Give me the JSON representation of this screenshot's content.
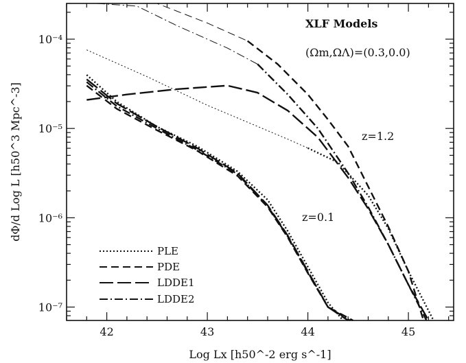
{
  "chart_data": {
    "type": "line",
    "title": "XLF Models",
    "subtitle": "(Ωm,ΩΛ)=(0.3,0.0)",
    "xlabel": "Log Lx [h50^-2 erg s^-1]",
    "ylabel": "dΦ/d Log L [h50^3 Mpc^-3]",
    "xlim": [
      41.6,
      45.45
    ],
    "ylim_log10": [
      -7.15,
      -3.6
    ],
    "yscale": "log",
    "x_ticks": [
      "42",
      "43",
      "44",
      "45"
    ],
    "y_ticks": [
      "10⁻⁴",
      "10⁻⁵",
      "10⁻⁶",
      "10⁻⁷"
    ],
    "annotations": [
      "z=1.2",
      "z=0.1"
    ],
    "legend": [
      "PLE",
      "PDE",
      "LDDE1",
      "LDDE2"
    ],
    "legend_position": "bottom-left",
    "series": [
      {
        "name": "PLE",
        "redshift": "1.2",
        "style": "dotted",
        "width": 1,
        "x": [
          41.8,
          42.4,
          43.0,
          43.4,
          43.8,
          44.0
        ],
        "log_y": [
          -4.12,
          -4.42,
          -4.74,
          -4.93,
          -5.12,
          -5.22
        ]
      },
      {
        "name": "PDE",
        "redshift": "1.2",
        "style": "dashed",
        "width": 1,
        "x": [
          42.1,
          42.5,
          43.0,
          43.4
        ],
        "log_y": [
          -3.45,
          -3.6,
          -3.82,
          -4.02
        ]
      },
      {
        "name": "LDDE2",
        "redshift": "1.2",
        "style": "dashdot",
        "width": 1,
        "x": [
          41.9,
          42.3,
          42.7,
          43.2,
          43.5
        ],
        "log_y": [
          -3.5,
          -3.63,
          -3.85,
          -4.1,
          -4.28
        ]
      },
      {
        "name": "PLE",
        "redshift": "1.2",
        "style": "dotted",
        "width": 2,
        "x": [
          44.0,
          44.3,
          44.6,
          44.8,
          45.0,
          45.25
        ],
        "log_y": [
          -5.22,
          -5.38,
          -5.75,
          -6.12,
          -6.6,
          -7.15
        ]
      },
      {
        "name": "PDE",
        "redshift": "1.2",
        "style": "dashed",
        "width": 2,
        "x": [
          43.4,
          43.7,
          44.0,
          44.2,
          44.4,
          44.6,
          44.8,
          45.0,
          45.15
        ],
        "log_y": [
          -4.02,
          -4.28,
          -4.62,
          -4.9,
          -5.2,
          -5.65,
          -6.1,
          -6.6,
          -7.15
        ]
      },
      {
        "name": "LDDE1",
        "redshift": "1.2",
        "style": "longdash",
        "width": 2,
        "x": [
          41.8,
          42.2,
          42.7,
          43.2,
          43.5,
          43.8,
          44.1,
          44.4,
          44.6,
          44.8,
          45.0,
          45.2
        ],
        "log_y": [
          -4.68,
          -4.62,
          -4.56,
          -4.52,
          -4.6,
          -4.8,
          -5.1,
          -5.55,
          -5.9,
          -6.3,
          -6.75,
          -7.15
        ]
      },
      {
        "name": "LDDE2",
        "redshift": "1.2",
        "style": "dashdot",
        "width": 2,
        "x": [
          43.5,
          43.8,
          44.1,
          44.4,
          44.6,
          44.8,
          45.0,
          45.18
        ],
        "log_y": [
          -4.28,
          -4.62,
          -5.0,
          -5.5,
          -5.88,
          -6.3,
          -6.75,
          -7.15
        ]
      },
      {
        "name": "PLE",
        "redshift": "0.1",
        "style": "dotted",
        "width": 2,
        "x": [
          41.8,
          42.1,
          42.5,
          42.9,
          43.3,
          43.6,
          43.8,
          44.0,
          44.2,
          44.35
        ],
        "log_y": [
          -4.4,
          -4.7,
          -4.98,
          -5.2,
          -5.48,
          -5.8,
          -6.15,
          -6.55,
          -6.95,
          -7.15
        ]
      },
      {
        "name": "PDE",
        "redshift": "0.1",
        "style": "dashed",
        "width": 2,
        "x": [
          41.8,
          42.1,
          42.5,
          42.9,
          43.3,
          43.6,
          43.8,
          44.0,
          44.2,
          44.45
        ],
        "log_y": [
          -4.52,
          -4.78,
          -5.02,
          -5.25,
          -5.53,
          -5.88,
          -6.22,
          -6.62,
          -7.0,
          -7.15
        ]
      },
      {
        "name": "LDDE1",
        "redshift": "0.1",
        "style": "longdash",
        "width": 2,
        "x": [
          41.8,
          42.1,
          42.5,
          42.9,
          43.3,
          43.6,
          43.8,
          44.0,
          44.2,
          44.4
        ],
        "log_y": [
          -4.45,
          -4.72,
          -4.98,
          -5.22,
          -5.5,
          -5.86,
          -6.2,
          -6.6,
          -7.0,
          -7.15
        ]
      },
      {
        "name": "LDDE2",
        "redshift": "0.1",
        "style": "dashdot",
        "width": 2,
        "x": [
          41.8,
          42.1,
          42.5,
          42.9,
          43.3,
          43.6,
          43.8,
          44.0,
          44.2,
          44.42
        ],
        "log_y": [
          -4.48,
          -4.75,
          -5.0,
          -5.24,
          -5.51,
          -5.87,
          -6.21,
          -6.61,
          -7.0,
          -7.15
        ]
      }
    ]
  }
}
